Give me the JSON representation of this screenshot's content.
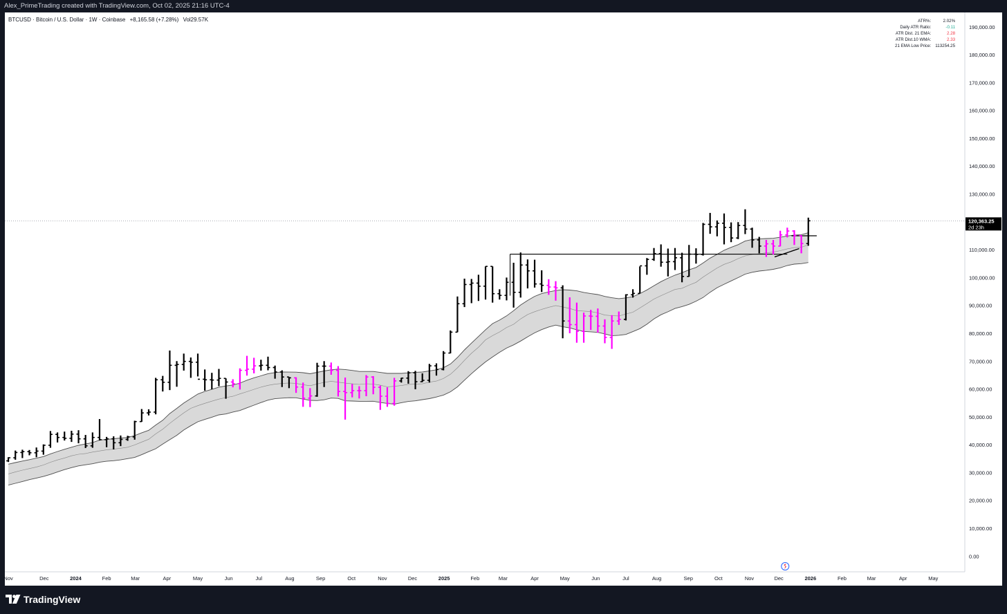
{
  "header": {
    "caption": "Alex_PrimeTrading created with TradingView.com, Oct 02, 2025 21:16 UTC-4"
  },
  "legend": {
    "symbol": "BTCUSD · Bitcoin / U.S. Dollar · 1W · Coinbase",
    "change": "+8,165.58 (+7.28%)",
    "volume": "Vol29.57K"
  },
  "atr_table": [
    {
      "label": "ATR%:",
      "value": "2.02%",
      "color": "#131722"
    },
    {
      "label": "Daily ATR Ratio:",
      "value": "-0.11",
      "color": "#22ab94"
    },
    {
      "label": "ATR Dist. 21 EMA:",
      "value": "2.28",
      "color": "#f23645"
    },
    {
      "label": "ATR Dist.10 WMA:",
      "value": "2.33",
      "color": "#f23645"
    },
    {
      "label": "21 EMA Low Price:",
      "value": "113254.25",
      "color": "#131722"
    }
  ],
  "price_label": {
    "value": "120,363.25",
    "countdown": "2d 23h"
  },
  "footer": {
    "brand": "TradingView"
  },
  "colors": {
    "up_bar": "#000000",
    "weak_bar": "#ff00ff",
    "band_fill": "#d9d9d9",
    "band_line": "#4d4d4d",
    "ema": "#ff00ff",
    "page_bg": "#131722"
  },
  "chart_data": {
    "type": "ohlc-bar",
    "title": "BTCUSD · Bitcoin / U.S. Dollar · 1W · Coinbase",
    "ylim": [
      0,
      197000
    ],
    "y_ticks": [
      0,
      10000,
      20000,
      30000,
      40000,
      50000,
      60000,
      70000,
      80000,
      90000,
      100000,
      110000,
      120000,
      130000,
      140000,
      150000,
      160000,
      170000,
      180000,
      190000
    ],
    "y_tick_labels": [
      "0.00",
      "10,000.00",
      "20,000.00",
      "30,000.00",
      "40,000.00",
      "50,000.00",
      "60,000.00",
      "70,000.00",
      "80,000.00",
      "90,000.00",
      "100,000.00",
      "110,000.00",
      "120,000.00",
      "130,000.00",
      "140,000.00",
      "150,000.00",
      "160,000.00",
      "170,000.00",
      "180,000.00",
      "190,000.00"
    ],
    "x_ticks": [
      {
        "label": "Nov",
        "week": 0
      },
      {
        "label": "Dec",
        "week": 5.1
      },
      {
        "label": "2024",
        "week": 9.6
      },
      {
        "label": "Feb",
        "week": 14
      },
      {
        "label": "Mar",
        "week": 18.1
      },
      {
        "label": "Apr",
        "week": 22.6
      },
      {
        "label": "May",
        "week": 27
      },
      {
        "label": "Jun",
        "week": 31.4
      },
      {
        "label": "Jul",
        "week": 35.7
      },
      {
        "label": "Aug",
        "week": 40.1
      },
      {
        "label": "Sep",
        "week": 44.5
      },
      {
        "label": "Oct",
        "week": 48.9
      },
      {
        "label": "Nov",
        "week": 53.3
      },
      {
        "label": "Dec",
        "week": 57.6
      },
      {
        "label": "2025",
        "week": 62.1
      },
      {
        "label": "Feb",
        "week": 66.5
      },
      {
        "label": "Mar",
        "week": 70.5
      },
      {
        "label": "Apr",
        "week": 75
      },
      {
        "label": "May",
        "week": 79.3
      },
      {
        "label": "Jun",
        "week": 83.7
      },
      {
        "label": "Jul",
        "week": 88
      },
      {
        "label": "Aug",
        "week": 92.4
      },
      {
        "label": "Sep",
        "week": 96.9
      },
      {
        "label": "Oct",
        "week": 101.2
      },
      {
        "label": "Nov",
        "week": 105.6
      },
      {
        "label": "Dec",
        "week": 109.8
      },
      {
        "label": "2026",
        "week": 114.3
      },
      {
        "label": "Feb",
        "week": 118.8
      },
      {
        "label": "Mar",
        "week": 123
      },
      {
        "label": "Apr",
        "week": 127.5
      },
      {
        "label": "May",
        "week": 131.8
      }
    ],
    "x_range_weeks": [
      -0.5,
      136.3
    ],
    "last_price": 120363.25,
    "resistance_level": 108400,
    "bars": [
      [
        34200,
        35500,
        33800,
        35300,
        "up"
      ],
      [
        35300,
        37900,
        34600,
        37200,
        "up"
      ],
      [
        37200,
        38200,
        35200,
        37500,
        "up"
      ],
      [
        37500,
        38100,
        36200,
        37100,
        "up"
      ],
      [
        37100,
        39000,
        35500,
        37700,
        "up"
      ],
      [
        37700,
        40100,
        36400,
        39800,
        "up"
      ],
      [
        39800,
        44900,
        38900,
        43700,
        "up"
      ],
      [
        43700,
        44400,
        40800,
        42600,
        "up"
      ],
      [
        42600,
        44700,
        41500,
        42300,
        "up"
      ],
      [
        42300,
        45000,
        41000,
        43800,
        "up"
      ],
      [
        43800,
        45200,
        40500,
        42100,
        "up"
      ],
      [
        42100,
        43500,
        38800,
        39600,
        "up"
      ],
      [
        39600,
        44400,
        38900,
        42600,
        "up"
      ],
      [
        42600,
        49200,
        41500,
        41800,
        "up"
      ],
      [
        41800,
        42800,
        39100,
        42100,
        "up"
      ],
      [
        42100,
        43000,
        38300,
        40700,
        "up"
      ],
      [
        40700,
        43300,
        39500,
        41900,
        "up"
      ],
      [
        41900,
        43200,
        41400,
        42800,
        "up"
      ],
      [
        42800,
        48600,
        41800,
        48300,
        "up"
      ],
      [
        48300,
        52800,
        48200,
        51400,
        "up"
      ],
      [
        51400,
        52700,
        50500,
        51700,
        "up"
      ],
      [
        51700,
        64000,
        50900,
        63300,
        "up"
      ],
      [
        63300,
        64700,
        59100,
        62400,
        "up"
      ],
      [
        62400,
        73800,
        59600,
        68500,
        "up"
      ],
      [
        68500,
        70000,
        60800,
        68800,
        "up"
      ],
      [
        68800,
        72700,
        66600,
        69900,
        "up"
      ],
      [
        69900,
        71300,
        64000,
        69600,
        "up"
      ],
      [
        69600,
        72700,
        64500,
        63500,
        "up"
      ],
      [
        63500,
        67000,
        59400,
        63300,
        "up"
      ],
      [
        63300,
        65800,
        59900,
        63200,
        "up"
      ],
      [
        63200,
        67200,
        61000,
        63800,
        "up"
      ],
      [
        63800,
        63800,
        56500,
        62500,
        "up"
      ],
      [
        62500,
        63500,
        60600,
        61900,
        "weak"
      ],
      [
        61900,
        67400,
        59800,
        66700,
        "weak"
      ],
      [
        66700,
        71900,
        64800,
        67100,
        "weak"
      ],
      [
        67100,
        71200,
        65600,
        68300,
        "weak"
      ],
      [
        68300,
        70500,
        66600,
        68500,
        "up"
      ],
      [
        68500,
        71600,
        66700,
        67700,
        "up"
      ],
      [
        67700,
        68400,
        63700,
        66100,
        "up"
      ],
      [
        66100,
        66700,
        60700,
        64300,
        "up"
      ],
      [
        64300,
        64300,
        60300,
        64000,
        "up"
      ],
      [
        64000,
        64200,
        58600,
        60700,
        "weak"
      ],
      [
        60700,
        62300,
        53600,
        56700,
        "weak"
      ],
      [
        56700,
        60300,
        53500,
        57500,
        "weak"
      ],
      [
        57500,
        69400,
        57200,
        68200,
        "up"
      ],
      [
        68200,
        70000,
        60700,
        68200,
        "up"
      ],
      [
        68200,
        69500,
        65100,
        66700,
        "weak"
      ],
      [
        66700,
        68200,
        57300,
        59100,
        "weak"
      ],
      [
        59100,
        64100,
        49000,
        58700,
        "weak"
      ],
      [
        58700,
        61800,
        57000,
        59400,
        "weak"
      ],
      [
        59400,
        61000,
        56600,
        59400,
        "weak"
      ],
      [
        59400,
        65000,
        57400,
        64300,
        "weak"
      ],
      [
        64300,
        64600,
        58100,
        60600,
        "weak"
      ],
      [
        60600,
        61200,
        52500,
        57400,
        "weak"
      ],
      [
        57400,
        60600,
        53600,
        54800,
        "weak"
      ],
      [
        54800,
        64000,
        54000,
        62900,
        "weak"
      ],
      [
        62900,
        64000,
        62300,
        63900,
        "up"
      ],
      [
        63900,
        66400,
        61900,
        65800,
        "up"
      ],
      [
        65800,
        66500,
        59900,
        62600,
        "up"
      ],
      [
        62600,
        65600,
        62500,
        63100,
        "up"
      ],
      [
        63100,
        69000,
        62300,
        68300,
        "up"
      ],
      [
        68300,
        69200,
        64800,
        67000,
        "up"
      ],
      [
        67000,
        73600,
        66700,
        72900,
        "up"
      ],
      [
        72900,
        81000,
        72800,
        80400,
        "up"
      ],
      [
        80400,
        93200,
        80400,
        90600,
        "up"
      ],
      [
        90600,
        99600,
        89400,
        97500,
        "up"
      ],
      [
        97500,
        99500,
        90800,
        98000,
        "up"
      ],
      [
        98000,
        101000,
        91600,
        96900,
        "up"
      ],
      [
        96900,
        104000,
        92100,
        104000,
        "up"
      ],
      [
        104000,
        104000,
        91000,
        94200,
        "up"
      ],
      [
        94200,
        95800,
        92100,
        93600,
        "up"
      ],
      [
        93600,
        100000,
        91800,
        98300,
        "up"
      ],
      [
        98300,
        105300,
        89200,
        94700,
        "up"
      ],
      [
        94700,
        109000,
        92800,
        104500,
        "up"
      ],
      [
        104500,
        106500,
        96100,
        102400,
        "up"
      ],
      [
        102400,
        106400,
        96400,
        97700,
        "up"
      ],
      [
        97700,
        102600,
        94800,
        97200,
        "up"
      ],
      [
        97200,
        99400,
        93800,
        96600,
        "weak"
      ],
      [
        96600,
        98700,
        91700,
        96300,
        "weak"
      ],
      [
        96300,
        97200,
        78200,
        84400,
        "up"
      ],
      [
        84400,
        92900,
        80000,
        83100,
        "weak"
      ],
      [
        83100,
        91000,
        76600,
        80700,
        "weak"
      ],
      [
        80700,
        87400,
        76600,
        86200,
        "weak"
      ],
      [
        86200,
        88400,
        81200,
        86100,
        "weak"
      ],
      [
        86100,
        88900,
        80200,
        82600,
        "weak"
      ],
      [
        82600,
        85000,
        76400,
        78500,
        "weak"
      ],
      [
        78500,
        86500,
        74400,
        84400,
        "weak"
      ],
      [
        84400,
        87800,
        83000,
        85000,
        "weak"
      ],
      [
        85000,
        94000,
        84600,
        93800,
        "up"
      ],
      [
        93800,
        95800,
        92800,
        94300,
        "up"
      ],
      [
        94300,
        104000,
        94300,
        104200,
        "up"
      ],
      [
        104200,
        107000,
        101000,
        106500,
        "up"
      ],
      [
        106500,
        110600,
        106000,
        108600,
        "up"
      ],
      [
        108600,
        111900,
        103900,
        105500,
        "up"
      ],
      [
        105500,
        110400,
        100400,
        105700,
        "up"
      ],
      [
        105700,
        110600,
        102700,
        107100,
        "up"
      ],
      [
        107100,
        108900,
        98300,
        100400,
        "up"
      ],
      [
        100400,
        111700,
        100300,
        108400,
        "up"
      ],
      [
        108400,
        110500,
        105000,
        108300,
        "up"
      ],
      [
        108300,
        119600,
        107900,
        119100,
        "up"
      ],
      [
        119100,
        123200,
        115700,
        118200,
        "up"
      ],
      [
        118200,
        120500,
        114800,
        119500,
        "up"
      ],
      [
        119500,
        123000,
        111900,
        118000,
        "up"
      ],
      [
        118000,
        119800,
        112700,
        114200,
        "up"
      ],
      [
        114200,
        119900,
        113800,
        118700,
        "up"
      ],
      [
        118700,
        124500,
        115600,
        117400,
        "up"
      ],
      [
        117400,
        117900,
        110700,
        113500,
        "up"
      ],
      [
        113500,
        114600,
        108700,
        111300,
        "up"
      ],
      [
        111300,
        113500,
        107400,
        112100,
        "weak"
      ],
      [
        112100,
        113500,
        108300,
        111300,
        "weak"
      ],
      [
        111300,
        116800,
        111200,
        115300,
        "weak"
      ],
      [
        115300,
        117900,
        114400,
        116700,
        "weak"
      ],
      [
        116700,
        117000,
        111700,
        115100,
        "weak"
      ],
      [
        115100,
        115200,
        108700,
        112200,
        "weak"
      ],
      [
        112200,
        121500,
        111400,
        120363,
        "up"
      ]
    ]
  }
}
